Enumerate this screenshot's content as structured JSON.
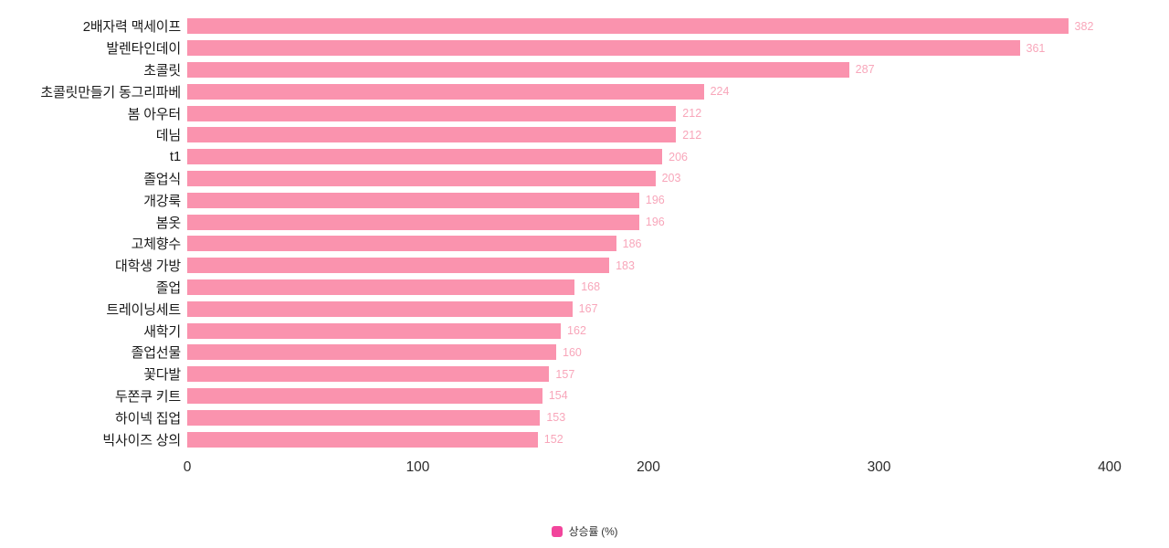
{
  "chart_data": {
    "type": "bar",
    "orientation": "horizontal",
    "title": "",
    "categories": [
      "2배자력 맥세이프",
      "발렌타인데이",
      "초콜릿",
      "초콜릿만들기 동그리파베",
      "봄 아우터",
      "데님",
      "t1",
      "졸업식",
      "개강룩",
      "봄옷",
      "고체향수",
      "대학생 가방",
      "졸업",
      "트레이닝세트",
      "새학기",
      "졸업선물",
      "꽃다발",
      "두쫀쿠 키트",
      "하이넥 집업",
      "빅사이즈 상의"
    ],
    "series": [
      {
        "name": "상승률 (%)",
        "values": [
          382,
          361,
          287,
          224,
          212,
          212,
          206,
          203,
          196,
          196,
          186,
          183,
          168,
          167,
          162,
          160,
          157,
          154,
          153,
          152
        ]
      }
    ],
    "xlabel": "",
    "ylabel": "",
    "xlim": [
      0,
      400
    ],
    "x_ticks": [
      0,
      100,
      200,
      300,
      400
    ],
    "grid": false,
    "value_labels": true,
    "legend_position": "bottom"
  },
  "legend": {
    "label": "상승률 (%)"
  },
  "colors": {
    "bar": "#fa93ae",
    "value_label": "#f8a6ba",
    "legend_marker": "#f2459c",
    "category_label": "#1a1a1a",
    "tick_label": "#2b2b2b",
    "background": "#ffffff"
  }
}
